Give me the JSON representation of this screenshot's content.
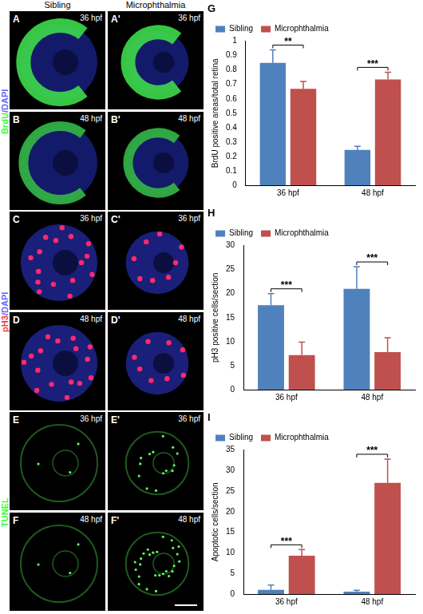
{
  "panels": {
    "columns": [
      "Sibling",
      "Microphthalmia"
    ],
    "groups": [
      {
        "stain_parts": [
          "BrdU",
          "/DAPI"
        ],
        "rows": [
          {
            "time": "36 hpf",
            "letters": [
              "A",
              "A'"
            ]
          },
          {
            "time": "48 hpf",
            "letters": [
              "B",
              "B'"
            ]
          }
        ]
      },
      {
        "stain_parts": [
          "pH3",
          "/DAPI"
        ],
        "rows": [
          {
            "time": "36 hpf",
            "letters": [
              "C",
              "C'"
            ]
          },
          {
            "time": "48 hpf",
            "letters": [
              "D",
              "D'"
            ]
          }
        ]
      },
      {
        "stain_parts": [
          "TUNEL"
        ],
        "rows": [
          {
            "time": "36 hpf",
            "letters": [
              "E",
              "E'"
            ]
          },
          {
            "time": "48 hpf",
            "letters": [
              "F",
              "F'"
            ]
          }
        ]
      }
    ]
  },
  "chart_data": [
    {
      "type": "bar",
      "panel": "G",
      "y_label": "BrdU positive areas/total retina",
      "categories": [
        "36 hpf",
        "48 hpf"
      ],
      "series": [
        {
          "name": "Sibling",
          "color": "#4f81bd",
          "values": [
            0.85,
            0.245
          ],
          "errors": [
            0.09,
            0.025
          ]
        },
        {
          "name": "Microphthalmia",
          "color": "#c0504d",
          "values": [
            0.67,
            0.735
          ],
          "errors": [
            0.05,
            0.05
          ]
        }
      ],
      "significance": [
        "**",
        "***"
      ],
      "ylim": [
        0,
        1
      ],
      "yticks": [
        0,
        0.1,
        0.2,
        0.3,
        0.4,
        0.5,
        0.6,
        0.7,
        0.8,
        0.9,
        1
      ],
      "grid": false,
      "legend": "top-left"
    },
    {
      "type": "bar",
      "panel": "H",
      "y_label": "pH3 positive cells/section",
      "categories": [
        "36 hpf",
        "48 hpf"
      ],
      "series": [
        {
          "name": "Sibling",
          "color": "#4f81bd",
          "values": [
            17.6,
            21
          ],
          "errors": [
            2.4,
            4.6
          ]
        },
        {
          "name": "Microphthalmia",
          "color": "#c0504d",
          "values": [
            7.2,
            7.8
          ],
          "errors": [
            2.7,
            3
          ]
        }
      ],
      "significance": [
        "***",
        "***"
      ],
      "ylim": [
        0,
        30
      ],
      "yticks": [
        0,
        5,
        10,
        15,
        20,
        25,
        30
      ],
      "grid": false,
      "legend": "top-left"
    },
    {
      "type": "bar",
      "panel": "I",
      "y_label": "Apoptotic cells/section",
      "categories": [
        "36 hpf",
        "48 hpf"
      ],
      "series": [
        {
          "name": "Sibling",
          "color": "#4f81bd",
          "values": [
            1.0,
            0.6
          ],
          "errors": [
            1.2,
            0.3
          ]
        },
        {
          "name": "Microphthalmia",
          "color": "#c0504d",
          "values": [
            9.3,
            27
          ],
          "errors": [
            1.5,
            5.8
          ]
        }
      ],
      "significance": [
        "***",
        "***"
      ],
      "ylim": [
        0,
        35
      ],
      "yticks": [
        0,
        5,
        10,
        15,
        20,
        25,
        30,
        35
      ],
      "grid": false,
      "legend": "top-left"
    }
  ]
}
